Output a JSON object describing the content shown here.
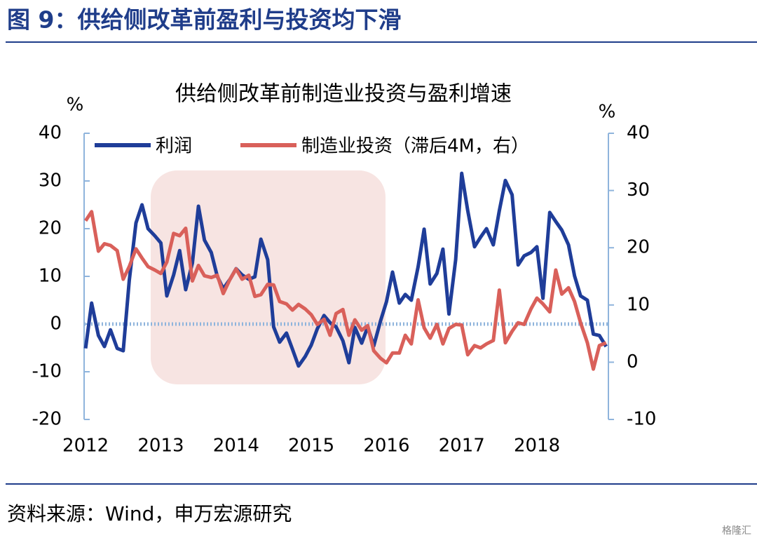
{
  "header": "图 9：供给侧改革前盈利与投资均下滑",
  "source": "资料来源：Wind，申万宏源研究",
  "watermark": "格隆汇",
  "chart_data": {
    "type": "line",
    "title": "供给侧改革前制造业投资与盈利增速",
    "y_label": "%",
    "y2_label": "%",
    "x": [
      2012,
      2012.08,
      2012.17,
      2012.25,
      2012.33,
      2012.42,
      2012.5,
      2012.58,
      2012.67,
      2012.75,
      2012.83,
      2012.92,
      2013,
      2013.08,
      2013.17,
      2013.25,
      2013.33,
      2013.42,
      2013.5,
      2013.58,
      2013.67,
      2013.75,
      2013.83,
      2013.92,
      2014,
      2014.08,
      2014.17,
      2014.25,
      2014.33,
      2014.42,
      2014.5,
      2014.58,
      2014.67,
      2014.75,
      2014.83,
      2014.92,
      2015,
      2015.08,
      2015.17,
      2015.25,
      2015.33,
      2015.42,
      2015.5,
      2015.58,
      2015.67,
      2015.75,
      2015.83,
      2015.92,
      2016,
      2016.08,
      2016.17,
      2016.25,
      2016.33,
      2016.42,
      2016.5,
      2016.58,
      2016.67,
      2016.75,
      2016.83,
      2016.92,
      2017,
      2017.08,
      2017.17,
      2017.25,
      2017.33,
      2017.42,
      2017.5,
      2017.58,
      2017.67,
      2017.75,
      2017.83,
      2017.92,
      2018,
      2018.08,
      2018.17,
      2018.25,
      2018.33,
      2018.42,
      2018.5,
      2018.58,
      2018.67,
      2018.75,
      2018.83,
      2018.92
    ],
    "xlim": [
      2011.98,
      2018.95
    ],
    "xticks": [
      2012,
      2013,
      2014,
      2015,
      2016,
      2017,
      2018
    ],
    "ylim": [
      -20,
      40
    ],
    "yticks": [
      -20,
      -10,
      0,
      10,
      20,
      30,
      40
    ],
    "y2lim": [
      -10,
      40
    ],
    "y2ticks": [
      -10,
      0,
      10,
      20,
      30,
      40
    ],
    "legend": "top",
    "series": [
      {
        "name": "利润",
        "color": "#1f3d99",
        "values": [
          -5.1,
          4.4,
          -2.4,
          -4.7,
          -1.2,
          -5.1,
          -5.6,
          9.1,
          21.2,
          25,
          20,
          18.5,
          17,
          5.9,
          10.3,
          15.4,
          7.2,
          12.8,
          24.7,
          17.6,
          15,
          10,
          7.4,
          9.4,
          11.6,
          10.3,
          9.4,
          9.9,
          17.8,
          13.5,
          -0.6,
          -3.8,
          -1.9,
          -5.3,
          -8.8,
          -6.8,
          -4.4,
          -1,
          1.8,
          0.3,
          -0.6,
          -3.5,
          -8.1,
          -0.7,
          -4,
          -0.6,
          -4.6,
          0.6,
          4.7,
          10.9,
          4.4,
          6.2,
          5,
          12,
          19.9,
          8.4,
          10.6,
          15.7,
          2.1,
          13.5,
          31.6,
          23.8,
          16.2,
          18.2,
          20,
          16.6,
          23.8,
          30.1,
          27.1,
          12.4,
          14.3,
          15,
          16.2,
          5.4,
          23.4,
          21.5,
          19.7,
          16.6,
          10.1,
          5.9,
          5,
          -2.1,
          -2.4,
          -4.7
        ]
      },
      {
        "name": "制造业投资（滞后4M，右）",
        "color": "#d9605a",
        "axis": "y2",
        "values": [
          24.7,
          26.3,
          19.4,
          20.7,
          20.4,
          19.5,
          14.5,
          16.7,
          19.8,
          18.2,
          16.7,
          16.1,
          15.5,
          17.5,
          22.5,
          22.1,
          23.4,
          14.2,
          16.9,
          15.1,
          14.8,
          15.2,
          12,
          14.5,
          16.3,
          14.5,
          15.2,
          11.5,
          11.8,
          13.6,
          13.5,
          10.6,
          10.2,
          9.1,
          10.1,
          9.3,
          8.3,
          6.6,
          7.5,
          4.7,
          8.5,
          9.2,
          4.7,
          7.4,
          5.6,
          6.4,
          2,
          0.7,
          -0.1,
          1.6,
          1.6,
          4.7,
          3.2,
          10.9,
          6,
          4.2,
          6.6,
          3.2,
          5.9,
          6.6,
          6.5,
          1.3,
          2.9,
          2.5,
          3.2,
          3.8,
          12.6,
          3.4,
          5.4,
          6.9,
          6.6,
          9.3,
          11.2,
          10.2,
          8.8,
          16.1,
          11.9,
          13,
          10.6,
          6.9,
          3.4,
          -1.2,
          2.9,
          3.4
        ]
      }
    ]
  }
}
